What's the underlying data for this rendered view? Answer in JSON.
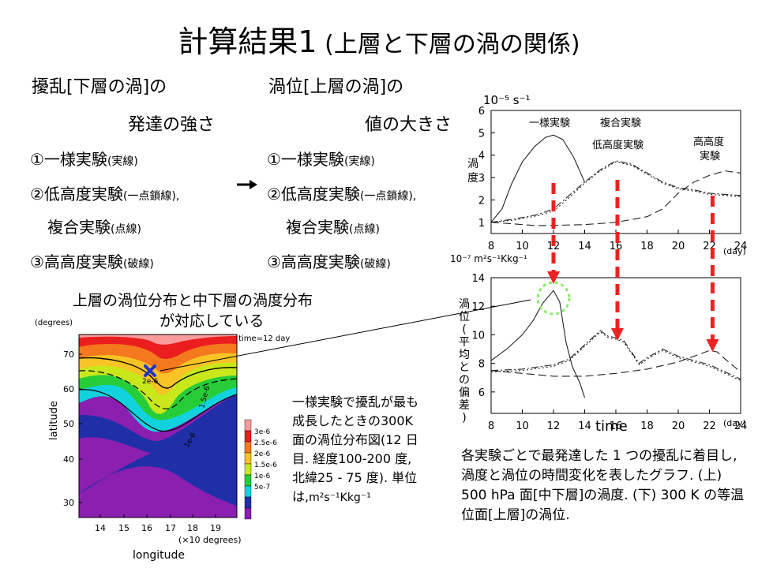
{
  "slide": {
    "title_main": "計算結果1",
    "title_sub": " (上層と下層の渦の関係)",
    "left_heading_1": "擾乱[下層の渦]の",
    "left_heading_2": "発達の強さ",
    "right_heading_1": "渦位[上層の渦]の",
    "right_heading_2": "値の大きさ",
    "exp1": "①一様実験",
    "exp1_note": "(実線)",
    "exp2": "②低高度実験",
    "exp2_note": "(一点鎖線),",
    "exp2_note_right": "(一点鎖線),",
    "exp2b": "複合実験",
    "exp2b_note": "(点線)",
    "exp3": "③高高度実験",
    "exp3_note": "(破線)",
    "map_caption_1": "上層の渦位分布と中下層の渦度分布",
    "map_caption_2": "が対応している",
    "map_desc": "一様実験で擾乱が最も成長したときの300K 面の渦位分布図(12 日目. 経度100-200 度, 北緯25 - 75 度). 単位は,",
    "map_desc_unit": "m²s⁻¹Kkg⁻¹",
    "chart_desc": "各実験ごとで最発達した 1 つの擾乱に着目し, 渦度と渦位の時間変化を表したグラフ. (上) 500 hPa 面[中下層]の渦度. (下) 300 K の等温位面[上層]の渦位."
  },
  "colors": {
    "arrow_red": "#ee2222",
    "circle_green": "#88ee66",
    "marker_blue": "#2233cc"
  },
  "chart_data": [
    {
      "type": "line",
      "unit_label": "10⁻⁵ s⁻¹",
      "ylabel": "渦度",
      "xunit": "(day)",
      "x": [
        8,
        10,
        12,
        14,
        16,
        18,
        20,
        22,
        24
      ],
      "xlim": [
        8,
        24
      ],
      "ylim": [
        0.5,
        6
      ],
      "yticks": [
        1,
        2,
        3,
        4,
        5,
        6
      ],
      "annotations": [
        "一様実験",
        "複合実験",
        "低高度実験",
        "高高度",
        "実験"
      ],
      "series": [
        {
          "name": "一様実験",
          "style": "solid",
          "points": [
            [
              8,
              1.0
            ],
            [
              8.7,
              1.6
            ],
            [
              9.3,
              2.7
            ],
            [
              10,
              3.7
            ],
            [
              10.8,
              4.4
            ],
            [
              11.5,
              4.8
            ],
            [
              12,
              4.9
            ],
            [
              12.6,
              4.7
            ],
            [
              13.3,
              3.9
            ],
            [
              14,
              2.8
            ]
          ]
        },
        {
          "name": "低高度実験",
          "style": "dashdot",
          "points": [
            [
              8,
              1.0
            ],
            [
              9.5,
              1.15
            ],
            [
              11,
              1.35
            ],
            [
              12,
              1.6
            ],
            [
              13,
              2.2
            ],
            [
              14,
              2.8
            ],
            [
              15,
              3.35
            ],
            [
              16,
              3.75
            ],
            [
              17,
              3.6
            ],
            [
              18,
              3.2
            ],
            [
              19,
              2.8
            ],
            [
              20,
              2.55
            ],
            [
              21,
              2.45
            ],
            [
              22,
              2.3
            ],
            [
              23,
              2.25
            ],
            [
              24,
              2.2
            ]
          ]
        },
        {
          "name": "複合実験",
          "style": "dotted",
          "points": [
            [
              8,
              1.0
            ],
            [
              9.5,
              1.1
            ],
            [
              11,
              1.3
            ],
            [
              12,
              1.5
            ],
            [
              13,
              2.1
            ],
            [
              14,
              2.75
            ],
            [
              15,
              3.3
            ],
            [
              16,
              3.7
            ],
            [
              17,
              3.55
            ],
            [
              18,
              3.15
            ],
            [
              19,
              2.75
            ],
            [
              20,
              2.5
            ],
            [
              21,
              2.4
            ],
            [
              22,
              2.25
            ],
            [
              23,
              2.2
            ],
            [
              24,
              2.15
            ]
          ]
        },
        {
          "name": "高高度実験",
          "style": "dashed",
          "points": [
            [
              8,
              1.0
            ],
            [
              11,
              0.85
            ],
            [
              14,
              0.9
            ],
            [
              16,
              1.0
            ],
            [
              18,
              1.25
            ],
            [
              19,
              1.6
            ],
            [
              20,
              2.3
            ],
            [
              21,
              2.8
            ],
            [
              22,
              3.1
            ],
            [
              23,
              3.3
            ],
            [
              24,
              3.2
            ]
          ]
        }
      ]
    },
    {
      "type": "line",
      "unit_label": "10⁻⁷ m²s⁻¹Kkg⁻¹",
      "ylabel": "渦位(平均との偏差)",
      "xlabel": "time",
      "xunit": "(day)",
      "x": [
        8,
        10,
        12,
        14,
        16,
        18,
        20,
        22,
        24
      ],
      "xlim": [
        8,
        24
      ],
      "ylim": [
        4.5,
        14
      ],
      "yticks": [
        6,
        8,
        10,
        12,
        14
      ],
      "series": [
        {
          "name": "一様実験",
          "style": "solid",
          "points": [
            [
              8,
              8.2
            ],
            [
              9,
              9.0
            ],
            [
              10,
              10.0
            ],
            [
              10.7,
              11.0
            ],
            [
              11.3,
              12.2
            ],
            [
              12,
              13.1
            ],
            [
              12.4,
              12.3
            ],
            [
              12.8,
              9.5
            ],
            [
              13.2,
              7.8
            ],
            [
              13.7,
              6.6
            ],
            [
              14,
              5.6
            ]
          ]
        },
        {
          "name": "低高度実験",
          "style": "dashdot",
          "points": [
            [
              8,
              7.5
            ],
            [
              10,
              7.6
            ],
            [
              12,
              7.9
            ],
            [
              13,
              8.3
            ],
            [
              14,
              9.3
            ],
            [
              15,
              10.3
            ],
            [
              15.5,
              9.9
            ],
            [
              16,
              9.8
            ],
            [
              16.5,
              9.6
            ],
            [
              17,
              8.8
            ],
            [
              17.5,
              8.0
            ],
            [
              18,
              8.4
            ],
            [
              19,
              9.0
            ],
            [
              20,
              8.5
            ],
            [
              21,
              8.2
            ],
            [
              22,
              7.9
            ],
            [
              23,
              7.4
            ],
            [
              24,
              6.9
            ]
          ]
        },
        {
          "name": "複合実験",
          "style": "dotted",
          "points": [
            [
              8,
              7.4
            ],
            [
              10,
              7.5
            ],
            [
              12,
              7.8
            ],
            [
              13,
              8.2
            ],
            [
              14,
              9.2
            ],
            [
              15,
              10.2
            ],
            [
              15.5,
              9.8
            ],
            [
              16,
              9.7
            ],
            [
              16.5,
              9.5
            ],
            [
              17,
              8.7
            ],
            [
              17.5,
              7.9
            ],
            [
              18,
              8.3
            ],
            [
              19,
              8.9
            ],
            [
              20,
              8.4
            ],
            [
              21,
              8.1
            ],
            [
              22,
              7.8
            ],
            [
              23,
              7.3
            ],
            [
              24,
              6.8
            ]
          ]
        },
        {
          "name": "高高度実験",
          "style": "dashed",
          "points": [
            [
              8,
              7.5
            ],
            [
              10,
              7.3
            ],
            [
              12,
              7.1
            ],
            [
              14,
              7.1
            ],
            [
              16,
              7.3
            ],
            [
              18,
              7.6
            ],
            [
              20,
              8.1
            ],
            [
              21,
              8.5
            ],
            [
              22,
              8.9
            ],
            [
              22.5,
              8.8
            ],
            [
              23,
              8.3
            ],
            [
              24,
              7.4
            ]
          ]
        }
      ]
    },
    {
      "type": "heatmap",
      "ylabel": "latitude",
      "xlabel": "longitude",
      "yunit_label": "(degrees)",
      "xunit_label": "(×10 degrees)",
      "time_label": "time=12 day",
      "xticks": [
        "14",
        "15",
        "16",
        "17",
        "18",
        "19"
      ],
      "yticks": [
        "30",
        "40",
        "50",
        "60",
        "70"
      ],
      "colorbar_labels": [
        "5e-7",
        "1e-6",
        "1.5e-6",
        "2e-6",
        "2.5e-6",
        "3e-6"
      ],
      "colorbar_colors": [
        "#8a1fb0",
        "#1e2fa8",
        "#11d3dd",
        "#27cc39",
        "#c8e81c",
        "#f7c325",
        "#f4781e",
        "#ea1e1e",
        "#f99b9b"
      ],
      "contour_labels": [
        "2e-6",
        "1.5e-6",
        "1e-6"
      ]
    }
  ]
}
